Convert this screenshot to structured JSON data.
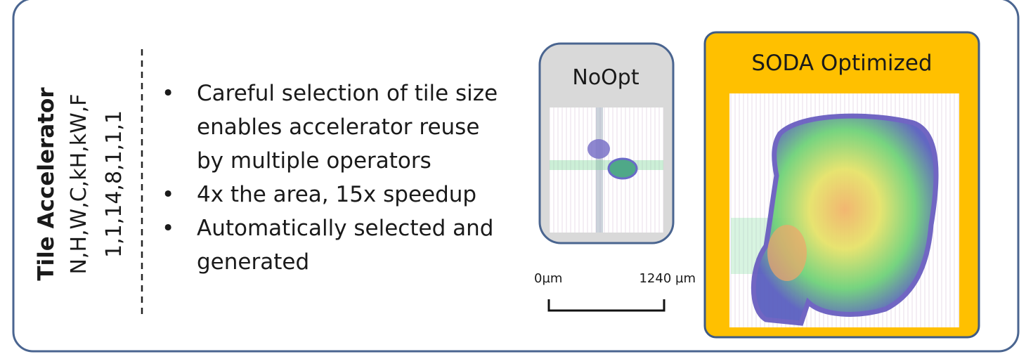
{
  "accelerator": {
    "title": "Tile Accelerator",
    "params": "N,H,W,C,kH,kW,F",
    "values": "1,1,14,8,1,1,1"
  },
  "bullets": [
    "Careful selection of tile size",
    "enables accelerator reuse",
    "by multiple operators",
    "4x the area, 15x speedup",
    "Automatically selected and",
    "generated"
  ],
  "noopt": {
    "title": "NoOpt"
  },
  "scale": {
    "start": "0µm",
    "end": "1240 µm"
  },
  "soda": {
    "title": "SODA Optimized"
  }
}
